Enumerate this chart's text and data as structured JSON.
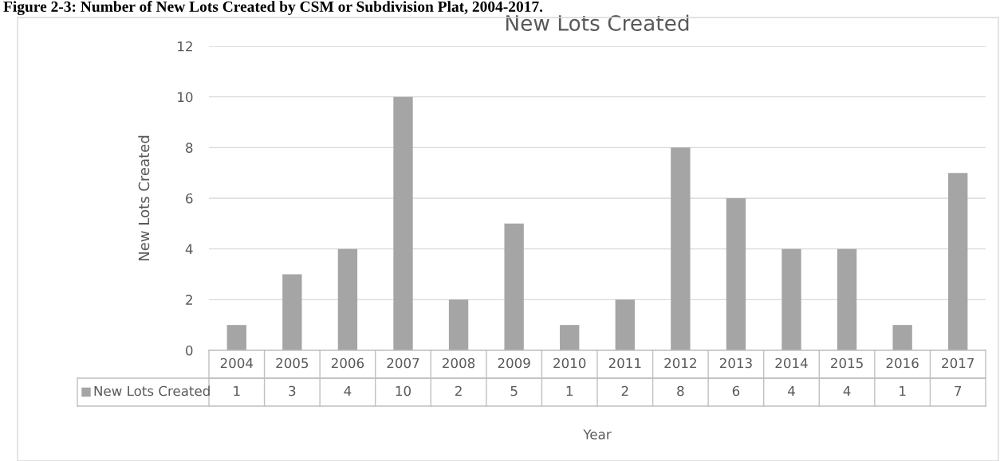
{
  "chart_data": {
    "type": "bar",
    "title": "New Lots Created",
    "xlabel": "Year",
    "ylabel": "New Lots Created",
    "annotations": [
      "Figure 2-3: Number of New Lots Created by CSM or Subdivision Plat, 2004-2017."
    ],
    "categories": [
      "2004",
      "2005",
      "2006",
      "2007",
      "2008",
      "2009",
      "2010",
      "2011",
      "2012",
      "2013",
      "2014",
      "2015",
      "2016",
      "2017"
    ],
    "series": [
      {
        "name": "New Lots Created",
        "color": "#a5a5a5",
        "values": [
          1,
          3,
          4,
          10,
          2,
          5,
          1,
          2,
          8,
          6,
          4,
          4,
          1,
          7
        ]
      }
    ],
    "ylim": [
      0,
      12
    ],
    "yticks": [
      0,
      2,
      4,
      6,
      8,
      10,
      12
    ],
    "grid": "y",
    "data_labels": true
  }
}
